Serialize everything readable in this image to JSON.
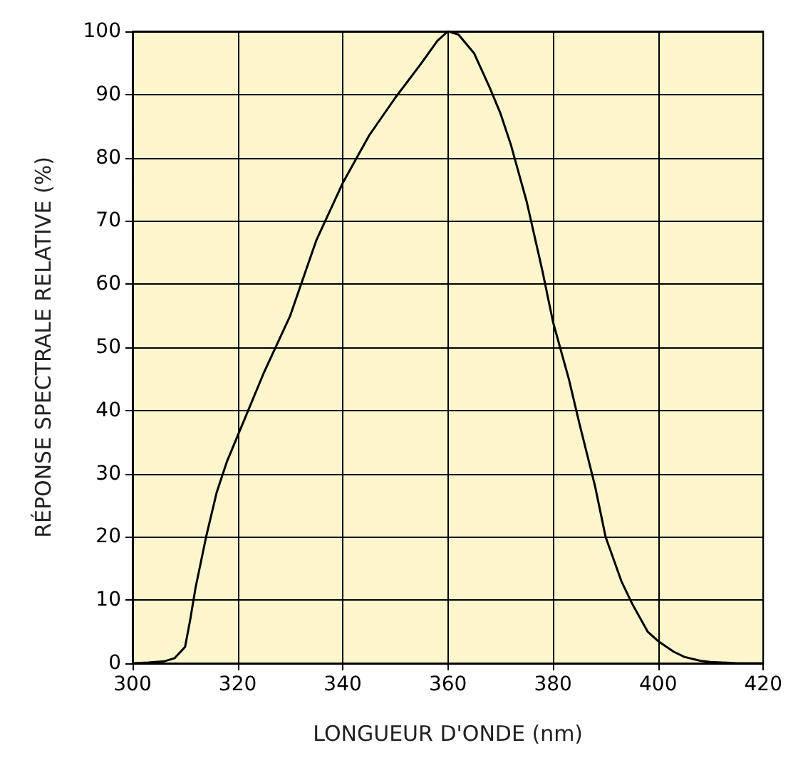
{
  "chart_data": {
    "type": "line",
    "xlabel": "LONGUEUR D'ONDE (nm)",
    "ylabel": "RÉPONSE SPECTRALE RELATIVE (%)",
    "x": [
      300,
      303,
      306,
      308,
      310,
      311,
      312,
      314,
      316,
      318,
      320,
      325,
      330,
      335,
      340,
      345,
      350,
      355,
      358,
      360,
      362,
      365,
      368,
      370,
      372,
      375,
      378,
      380,
      383,
      385,
      388,
      390,
      393,
      395,
      398,
      400,
      403,
      405,
      408,
      410,
      415,
      420
    ],
    "series": [
      {
        "color": "#000000",
        "values": [
          0,
          0.1,
          0.3,
          0.8,
          2.6,
          7,
          12,
          20,
          27,
          32,
          36,
          46,
          55,
          67,
          76,
          83.5,
          89.5,
          95,
          98.5,
          100,
          99.5,
          96.5,
          91,
          87,
          82,
          73,
          62,
          54,
          45,
          38,
          28,
          20,
          13,
          9.5,
          5,
          3.5,
          1.8,
          1,
          0.4,
          0.2,
          0,
          0
        ]
      }
    ],
    "xlim": [
      300,
      420
    ],
    "xticks": [
      300,
      320,
      340,
      360,
      380,
      400,
      420
    ],
    "ylim": [
      0,
      100
    ],
    "yticks": [
      0,
      10,
      20,
      30,
      40,
      50,
      60,
      70,
      80,
      90,
      100
    ],
    "grid": true,
    "marker": "none",
    "line_style": "solid"
  }
}
